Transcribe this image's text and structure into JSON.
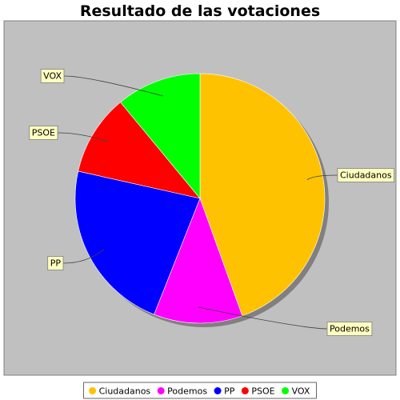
{
  "chart_data": {
    "type": "pie",
    "title": "Resultado de las votaciones",
    "slices": [
      {
        "label": "Ciudadanos",
        "value": 44.5,
        "color": "#FFC200"
      },
      {
        "label": "Podemos",
        "value": 11.5,
        "color": "#FF00FF"
      },
      {
        "label": "PP",
        "value": 22.5,
        "color": "#0000FF"
      },
      {
        "label": "PSOE",
        "value": 10.5,
        "color": "#FF0000"
      },
      {
        "label": "VOX",
        "value": 11.0,
        "color": "#00FF00"
      }
    ],
    "legend": {
      "placement": "bottom",
      "entries": [
        "Ciudadanos",
        "Podemos",
        "PP",
        "PSOE",
        "VOX"
      ]
    },
    "plot_background": "#C0C0C0",
    "label_box_color": "#FFFFC0"
  }
}
